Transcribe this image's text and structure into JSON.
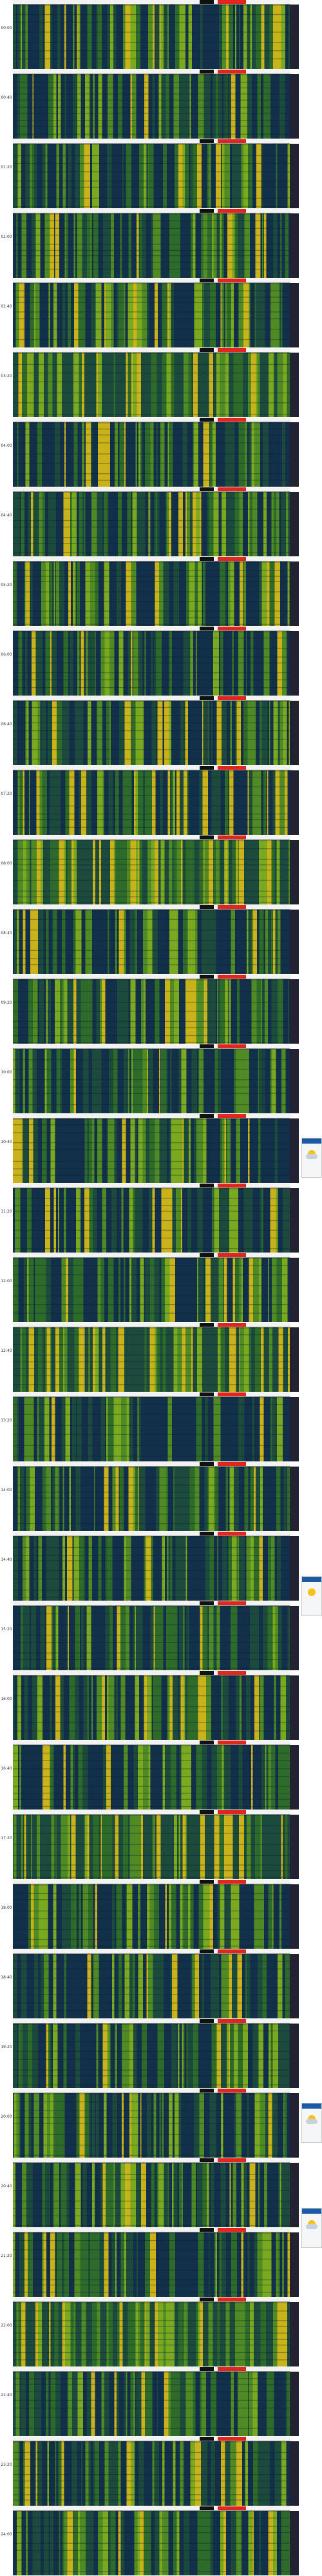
{
  "panels": [
    {
      "label": "00:00"
    },
    {
      "label": "00:40"
    },
    {
      "label": "01:20"
    },
    {
      "label": "02:00"
    },
    {
      "label": "02:40"
    },
    {
      "label": "03:20"
    },
    {
      "label": "04:00"
    },
    {
      "label": "04:40"
    },
    {
      "label": "05:20"
    },
    {
      "label": "06:00"
    },
    {
      "label": "06:40"
    },
    {
      "label": "07:20"
    },
    {
      "label": "08:00"
    },
    {
      "label": "08:40"
    },
    {
      "label": "09:20"
    },
    {
      "label": "10:00"
    },
    {
      "label": "10:40"
    },
    {
      "label": "11:20"
    },
    {
      "label": "12:00"
    },
    {
      "label": "12:40"
    },
    {
      "label": "13:20"
    },
    {
      "label": "14:00"
    },
    {
      "label": "14:40"
    },
    {
      "label": "15:20"
    },
    {
      "label": "16:00"
    },
    {
      "label": "16:40"
    },
    {
      "label": "17:20"
    },
    {
      "label": "18:00"
    },
    {
      "label": "18:40"
    },
    {
      "label": "19:20"
    },
    {
      "label": "20:00"
    },
    {
      "label": "20:40"
    },
    {
      "label": "21:20"
    },
    {
      "label": "22:00"
    },
    {
      "label": "22:40"
    },
    {
      "label": "23:20"
    },
    {
      "label": "24:00"
    }
  ]
}
